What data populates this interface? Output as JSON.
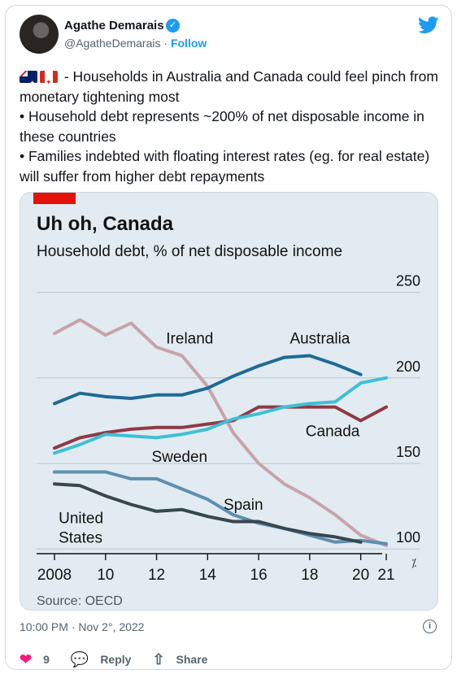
{
  "author": {
    "name": "Agathe Demarais",
    "handle": "@AgatheDemarais",
    "separator": " · ",
    "follow_label": "Follow"
  },
  "tweet": {
    "flags": [
      "australia-flag-icon",
      "canada-flag-icon"
    ],
    "line1": " - Households in Australia and Canada could feel pinch from monetary tightening most",
    "bullet1": "• Household debt represents ~200% of net disposable income in these countries",
    "bullet2": "• Families indebted with floating interest rates (eg. for real estate) will suffer from higher debt repayments"
  },
  "chart_data": {
    "type": "line",
    "title": "Uh oh, Canada",
    "subtitle": "Household debt, % of net disposable income",
    "source": "Source: OECD",
    "accent_color": "#e3120b",
    "x": [
      2008,
      2009,
      2010,
      2011,
      2012,
      2013,
      2014,
      2015,
      2016,
      2017,
      2018,
      2019,
      2020,
      2021
    ],
    "x_tick_labels": [
      "2008",
      "10",
      "12",
      "14",
      "16",
      "18",
      "20",
      "21"
    ],
    "x_ticks": [
      2008,
      2010,
      2012,
      2014,
      2016,
      2018,
      2020,
      2021
    ],
    "y_tick_labels": [
      "250",
      "200",
      "150",
      "100"
    ],
    "y_ticks": [
      250,
      200,
      150,
      100
    ],
    "ylim": [
      92,
      256
    ],
    "axis_break": true,
    "grid": true,
    "series": [
      {
        "name": "Ireland",
        "color": "#c9a2ab",
        "label_x": 2013.3,
        "label_y": 220,
        "values": [
          226,
          234,
          225,
          232,
          218,
          213,
          195,
          168,
          150,
          138,
          130,
          120,
          108,
          102
        ]
      },
      {
        "name": "Australia",
        "color": "#1f6a96",
        "label_x": 2018.4,
        "label_y": 220,
        "values": [
          185,
          191,
          189,
          188,
          190,
          190,
          194,
          201,
          207,
          212,
          213,
          208,
          202,
          null
        ]
      },
      {
        "name": "Canada",
        "color": "#8f3946",
        "label_x": 2018.9,
        "label_y": 166,
        "values": [
          159,
          165,
          168,
          170,
          171,
          171,
          173,
          175,
          183,
          183,
          183,
          183,
          175,
          183
        ]
      },
      {
        "name": "Sweden",
        "color": "#3fbfd6",
        "label_x": 2012.9,
        "label_y": 151,
        "values": [
          156,
          161,
          167,
          166,
          165,
          167,
          170,
          176,
          179,
          183,
          185,
          186,
          197,
          200
        ]
      },
      {
        "name": "Spain",
        "color": "#5e8fb0",
        "label_x": 2015.4,
        "label_y": 123,
        "values": [
          145,
          145,
          145,
          141,
          141,
          135,
          129,
          120,
          115,
          112,
          108,
          104,
          105,
          103
        ]
      },
      {
        "name": "United\nStates",
        "color": "#38464f",
        "label_x": 2008.8,
        "label_y": 115,
        "values": [
          138,
          137,
          131,
          126,
          122,
          123,
          119,
          116,
          116,
          112,
          109,
          107,
          104,
          null
        ]
      }
    ]
  },
  "footer": {
    "timestamp": "10:00 PM · Nov 2°, 2022"
  },
  "actions": {
    "like_count": "9",
    "reply_label": "Reply",
    "share_label": "Share"
  }
}
